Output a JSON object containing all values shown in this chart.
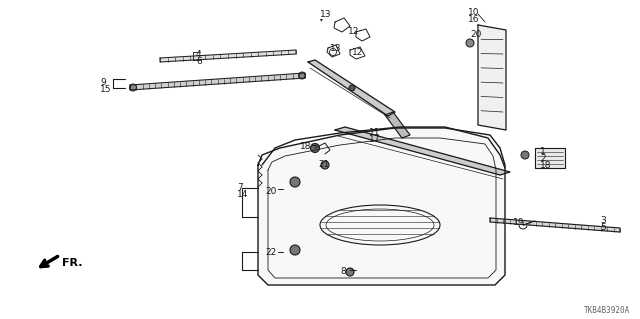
{
  "background_color": "#ffffff",
  "line_color": "#1a1a1a",
  "footer_text": "TKB4B3920A",
  "figsize": [
    6.4,
    3.19
  ],
  "dpi": 100
}
